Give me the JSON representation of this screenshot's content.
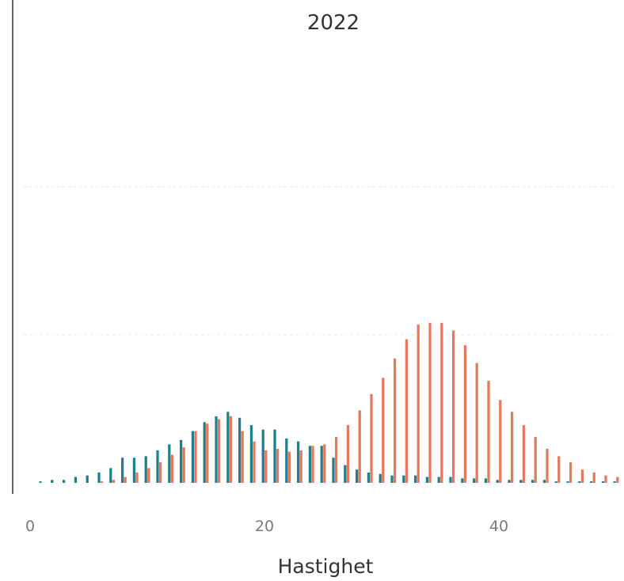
{
  "chart_data": {
    "type": "bar",
    "title": "2022",
    "xlabel": "Hastighet",
    "ylabel": "",
    "xlim": [
      0,
      50
    ],
    "ylim": [
      0,
      2.9
    ],
    "x_ticks": [
      "0",
      "20",
      "40"
    ],
    "x_tick_values": [
      0,
      20,
      40
    ],
    "y_gridlines": [
      1,
      2,
      3
    ],
    "grid": true,
    "legend": "none",
    "x": [
      1,
      2,
      3,
      4,
      5,
      6,
      7,
      8,
      9,
      10,
      11,
      12,
      13,
      14,
      15,
      16,
      17,
      18,
      19,
      20,
      21,
      22,
      23,
      24,
      25,
      26,
      27,
      28,
      29,
      30,
      31,
      32,
      33,
      34,
      35,
      36,
      37,
      38,
      39,
      40,
      41,
      42,
      43,
      44,
      45,
      46,
      47,
      48,
      49,
      50
    ],
    "series": [
      {
        "color": "#1f7f8a",
        "values": [
          0.01,
          0.02,
          0.02,
          0.04,
          0.05,
          0.07,
          0.1,
          0.17,
          0.17,
          0.18,
          0.22,
          0.26,
          0.29,
          0.35,
          0.41,
          0.45,
          0.48,
          0.44,
          0.39,
          0.36,
          0.36,
          0.3,
          0.28,
          0.25,
          0.25,
          0.17,
          0.12,
          0.09,
          0.07,
          0.06,
          0.05,
          0.05,
          0.05,
          0.04,
          0.04,
          0.04,
          0.03,
          0.03,
          0.03,
          0.02,
          0.02,
          0.02,
          0.02,
          0.02,
          0.01,
          0.01,
          0.01,
          0.01,
          0.01,
          0.01
        ]
      },
      {
        "color": "#e3694a",
        "values": [
          0.0,
          0.0,
          0.0,
          0.0,
          0.0,
          0.01,
          0.02,
          0.04,
          0.07,
          0.1,
          0.14,
          0.19,
          0.24,
          0.35,
          0.4,
          0.43,
          0.45,
          0.35,
          0.28,
          0.22,
          0.23,
          0.21,
          0.22,
          0.25,
          0.26,
          0.31,
          0.39,
          0.49,
          0.6,
          0.71,
          0.84,
          0.97,
          1.07,
          1.08,
          1.08,
          1.03,
          0.93,
          0.81,
          0.69,
          0.56,
          0.48,
          0.39,
          0.31,
          0.23,
          0.18,
          0.14,
          0.09,
          0.07,
          0.05,
          0.04
        ]
      }
    ]
  }
}
